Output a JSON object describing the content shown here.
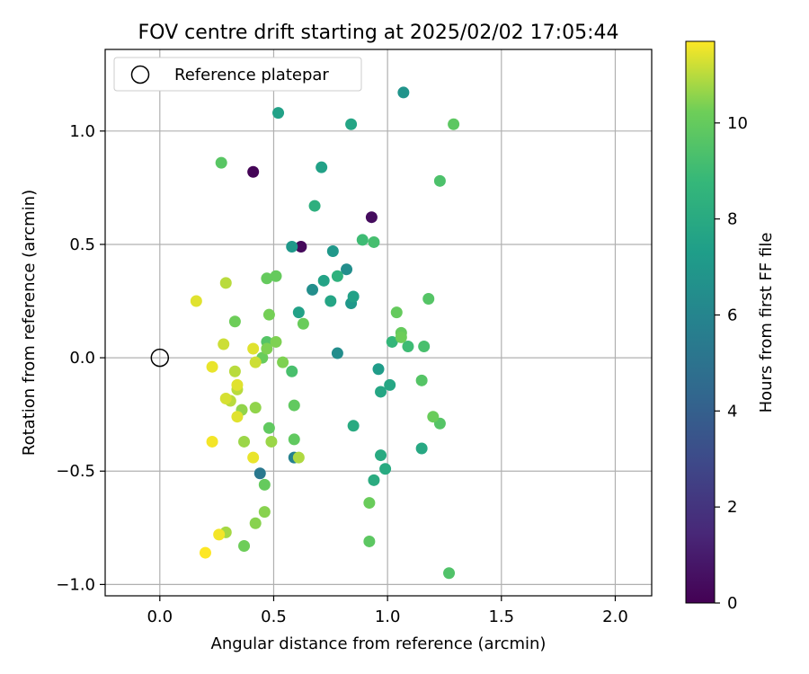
{
  "chart_data": {
    "type": "scatter",
    "title": "FOV centre drift starting at 2025/02/02 17:05:44",
    "xlabel": "Angular distance from reference (arcmin)",
    "ylabel": "Rotation from reference (arcmin)",
    "xlim": [
      -0.24,
      2.16
    ],
    "ylim": [
      -1.05,
      1.36
    ],
    "xticks": [
      0.0,
      0.5,
      1.0,
      1.5,
      2.0
    ],
    "xtick_labels": [
      "0.0",
      "0.5",
      "1.0",
      "1.5",
      "2.0"
    ],
    "yticks": [
      -1.0,
      -0.5,
      0.0,
      0.5,
      1.0
    ],
    "ytick_labels": [
      "−1.0",
      "−0.5",
      "0.0",
      "0.5",
      "1.0"
    ],
    "grid": true,
    "legend": {
      "location": "upper-left",
      "entries": [
        "Reference platepar"
      ]
    },
    "reference_point": {
      "x": 0.0,
      "y": 0.0
    },
    "colorbar": {
      "label": "Hours from first FF file",
      "range": [
        0,
        11.7
      ],
      "ticks": [
        0,
        2,
        4,
        6,
        8,
        10
      ],
      "tick_labels": [
        "0",
        "2",
        "4",
        "6",
        "8",
        "10"
      ],
      "colormap": "viridis"
    },
    "points": [
      {
        "x": 0.41,
        "y": 0.82,
        "c": 0.1
      },
      {
        "x": 0.62,
        "y": 0.49,
        "c": 0.3
      },
      {
        "x": 0.93,
        "y": 0.62,
        "c": 0.4
      },
      {
        "x": 0.44,
        "y": -0.51,
        "c": 5.3
      },
      {
        "x": 0.59,
        "y": -0.44,
        "c": 5.8
      },
      {
        "x": 0.78,
        "y": 0.02,
        "c": 6.4
      },
      {
        "x": 0.67,
        "y": 0.3,
        "c": 6.5
      },
      {
        "x": 0.82,
        "y": 0.39,
        "c": 6.5
      },
      {
        "x": 1.07,
        "y": 1.17,
        "c": 6.8
      },
      {
        "x": 0.58,
        "y": 0.49,
        "c": 7.0
      },
      {
        "x": 0.76,
        "y": 0.47,
        "c": 7.0
      },
      {
        "x": 0.84,
        "y": 0.24,
        "c": 7.0
      },
      {
        "x": 0.96,
        "y": -0.05,
        "c": 7.2
      },
      {
        "x": 0.52,
        "y": 1.08,
        "c": 7.5
      },
      {
        "x": 0.71,
        "y": 0.84,
        "c": 7.5
      },
      {
        "x": 0.61,
        "y": 0.2,
        "c": 7.5
      },
      {
        "x": 0.85,
        "y": 0.27,
        "c": 7.5
      },
      {
        "x": 0.72,
        "y": 0.34,
        "c": 7.6
      },
      {
        "x": 0.84,
        "y": 1.03,
        "c": 7.7
      },
      {
        "x": 0.75,
        "y": 0.25,
        "c": 7.7
      },
      {
        "x": 0.97,
        "y": -0.15,
        "c": 7.8
      },
      {
        "x": 1.01,
        "y": -0.12,
        "c": 7.8
      },
      {
        "x": 1.15,
        "y": -0.4,
        "c": 7.9
      },
      {
        "x": 0.85,
        "y": -0.3,
        "c": 8.0
      },
      {
        "x": 0.97,
        "y": -0.43,
        "c": 8.0
      },
      {
        "x": 0.99,
        "y": -0.49,
        "c": 8.0
      },
      {
        "x": 0.94,
        "y": -0.54,
        "c": 8.1
      },
      {
        "x": 0.68,
        "y": 0.67,
        "c": 8.3
      },
      {
        "x": 0.78,
        "y": 0.36,
        "c": 8.4
      },
      {
        "x": 1.02,
        "y": 0.07,
        "c": 8.7
      },
      {
        "x": 0.89,
        "y": 0.52,
        "c": 9.0
      },
      {
        "x": 1.09,
        "y": 0.05,
        "c": 9.0
      },
      {
        "x": 0.94,
        "y": 0.51,
        "c": 9.2
      },
      {
        "x": 0.58,
        "y": -0.06,
        "c": 9.3
      },
      {
        "x": 1.16,
        "y": 0.05,
        "c": 9.3
      },
      {
        "x": 1.23,
        "y": 0.78,
        "c": 9.4
      },
      {
        "x": 1.27,
        "y": -0.95,
        "c": 9.5
      },
      {
        "x": 0.47,
        "y": 0.07,
        "c": 9.6
      },
      {
        "x": 1.18,
        "y": 0.26,
        "c": 9.6
      },
      {
        "x": 1.15,
        "y": -0.1,
        "c": 9.6
      },
      {
        "x": 1.23,
        "y": -0.29,
        "c": 9.6
      },
      {
        "x": 0.27,
        "y": 0.86,
        "c": 9.7
      },
      {
        "x": 0.92,
        "y": -0.81,
        "c": 9.8
      },
      {
        "x": 1.29,
        "y": 1.03,
        "c": 9.8
      },
      {
        "x": 0.59,
        "y": -0.21,
        "c": 9.9
      },
      {
        "x": 0.48,
        "y": -0.31,
        "c": 9.9
      },
      {
        "x": 0.59,
        "y": -0.36,
        "c": 9.9
      },
      {
        "x": 1.04,
        "y": 0.2,
        "c": 10.0
      },
      {
        "x": 1.06,
        "y": 0.11,
        "c": 10.0
      },
      {
        "x": 0.47,
        "y": 0.35,
        "c": 10.0
      },
      {
        "x": 0.51,
        "y": 0.36,
        "c": 10.0
      },
      {
        "x": 0.46,
        "y": -0.56,
        "c": 10.0
      },
      {
        "x": 1.2,
        "y": -0.26,
        "c": 10.1
      },
      {
        "x": 0.63,
        "y": 0.15,
        "c": 10.1
      },
      {
        "x": 0.92,
        "y": -0.64,
        "c": 10.1
      },
      {
        "x": 0.45,
        "y": 0.0,
        "c": 10.1
      },
      {
        "x": 1.06,
        "y": 0.09,
        "c": 10.2
      },
      {
        "x": 0.33,
        "y": 0.16,
        "c": 10.2
      },
      {
        "x": 0.37,
        "y": -0.83,
        "c": 10.2
      },
      {
        "x": 0.48,
        "y": 0.19,
        "c": 10.3
      },
      {
        "x": 0.47,
        "y": 0.04,
        "c": 10.4
      },
      {
        "x": 0.51,
        "y": 0.07,
        "c": 10.4
      },
      {
        "x": 0.54,
        "y": -0.02,
        "c": 10.4
      },
      {
        "x": 0.46,
        "y": -0.68,
        "c": 10.5
      },
      {
        "x": 0.42,
        "y": -0.73,
        "c": 10.5
      },
      {
        "x": 0.36,
        "y": -0.23,
        "c": 10.6
      },
      {
        "x": 0.42,
        "y": -0.22,
        "c": 10.6
      },
      {
        "x": 0.49,
        "y": -0.37,
        "c": 10.7
      },
      {
        "x": 0.37,
        "y": -0.37,
        "c": 10.7
      },
      {
        "x": 0.29,
        "y": -0.77,
        "c": 10.8
      },
      {
        "x": 0.61,
        "y": -0.44,
        "c": 10.9
      },
      {
        "x": 0.29,
        "y": 0.33,
        "c": 11.0
      },
      {
        "x": 0.33,
        "y": -0.06,
        "c": 11.0
      },
      {
        "x": 0.34,
        "y": -0.14,
        "c": 11.0
      },
      {
        "x": 0.31,
        "y": -0.19,
        "c": 11.0
      },
      {
        "x": 0.42,
        "y": -0.02,
        "c": 11.2
      },
      {
        "x": 0.28,
        "y": 0.06,
        "c": 11.2
      },
      {
        "x": 0.29,
        "y": -0.18,
        "c": 11.3
      },
      {
        "x": 0.34,
        "y": -0.12,
        "c": 11.4
      },
      {
        "x": 0.41,
        "y": 0.04,
        "c": 11.4
      },
      {
        "x": 0.16,
        "y": 0.25,
        "c": 11.4
      },
      {
        "x": 0.34,
        "y": -0.26,
        "c": 11.4
      },
      {
        "x": 0.41,
        "y": -0.44,
        "c": 11.5
      },
      {
        "x": 0.23,
        "y": -0.04,
        "c": 11.5
      },
      {
        "x": 0.23,
        "y": -0.37,
        "c": 11.6
      },
      {
        "x": 0.26,
        "y": -0.78,
        "c": 11.6
      },
      {
        "x": 0.2,
        "y": -0.86,
        "c": 11.7
      }
    ]
  }
}
